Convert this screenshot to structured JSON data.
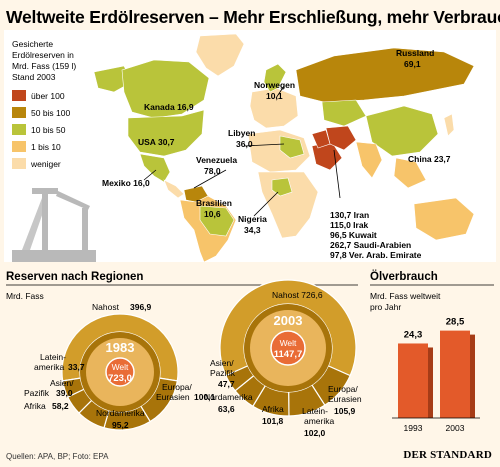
{
  "title": "Weltweite Erdölreserven – Mehr Erschließung, mehr Verbrauch",
  "colors": {
    "ueber100": "#c0461c",
    "c50_100": "#b8860b",
    "c10_50": "#b9c43a",
    "c1_10": "#f7c46a",
    "weniger": "#fbdcaa",
    "ring_dark": "#a8740a",
    "ring_mid": "#d29d2a",
    "core": "#e96c36",
    "bar": "#e35a2a"
  },
  "legend": {
    "header": [
      "Gesicherte",
      "Erdölreserven in",
      "Mrd. Fass (159 l)",
      "Stand 2003"
    ],
    "items": [
      "über 100",
      "50 bis 100",
      "10 bis 50",
      "1 bis 10",
      "weniger"
    ]
  },
  "map_labels": {
    "kanada": "Kanada 16,9",
    "usa": "USA 30,7",
    "mexiko": "Mexiko 16,0",
    "venezuela_name": "Venezuela",
    "venezuela_value": "78,0",
    "brasilien_name": "Brasilien",
    "brasilien_value": "10,6",
    "norwegen_name": "Norwegen",
    "norwegen_value": "10,1",
    "russland_name": "Russland",
    "russland_value": "69,1",
    "libyen_name": "Libyen",
    "libyen_value": "36,0",
    "nigeria_name": "Nigeria",
    "nigeria_value": "34,3",
    "china": "China 23,7",
    "gulf": [
      "130,7 Iran",
      "115,0 Irak",
      "96,5 Kuwait",
      "262,7 Saudi-Arabien",
      "97,8 Ver. Arab. Emirate"
    ]
  },
  "regions": {
    "title": "Reserven nach Regionen",
    "unit": "Mrd. Fass",
    "world_label": "Welt",
    "labels_1983": {
      "nahost_name": "Nahost",
      "nahost_value": "396,9",
      "latein_name1": "Latein-",
      "latein_name2": "amerika",
      "latein_value": "33,7",
      "asien_name1": "Asien/",
      "asien_name2": "Pazifik",
      "asien_value": "39,0",
      "afrika_name": "Afrika",
      "afrika_value": "58,2",
      "nord_name": "Nordamerika",
      "nord_value": "95,2",
      "europa_name1": "Europa/",
      "europa_name2": "Eurasien",
      "europa_value": "100,1"
    },
    "labels_2003": {
      "nahost": "Nahost 726,6",
      "asien_name1": "Asien/",
      "asien_name2": "Pazifik",
      "asien_value": "47,7",
      "nord_name": "Nordamerika",
      "nord_value": "63,6",
      "afrika_name": "Afrika",
      "afrika_value": "101,8",
      "latein_name1": "Latein-",
      "latein_name2": "amerika",
      "latein_value": "102,0",
      "europa_name1": "Europa/",
      "europa_name2": "Eurasien",
      "europa_value": "105,9"
    }
  },
  "consumption": {
    "title": "Ölverbrauch",
    "subtitle": [
      "Mrd. Fass weltweit",
      "pro Jahr"
    ]
  },
  "footer": {
    "source": "Quellen: APA, BP; Foto: EPA",
    "brand": "DER STANDARD"
  },
  "chart_data": [
    {
      "type": "pie",
      "title": "1983",
      "categories": [
        "Nahost",
        "Europa/Eurasien",
        "Nordamerika",
        "Afrika",
        "Asien/Pazifik",
        "Lateinamerika"
      ],
      "values": [
        396.9,
        100.1,
        95.2,
        58.2,
        39.0,
        33.7
      ],
      "total_label": "Welt",
      "total": 723.0
    },
    {
      "type": "pie",
      "title": "2003",
      "categories": [
        "Nahost",
        "Europa/Eurasien",
        "Lateinamerika",
        "Afrika",
        "Nordamerika",
        "Asien/Pazifik"
      ],
      "values": [
        726.6,
        105.9,
        102.0,
        101.8,
        63.6,
        47.7
      ],
      "total_label": "Welt",
      "total": 1147.7
    },
    {
      "type": "bar",
      "title": "Ölverbrauch",
      "categories": [
        "1993",
        "2003"
      ],
      "values": [
        24.3,
        28.5
      ]
    }
  ]
}
